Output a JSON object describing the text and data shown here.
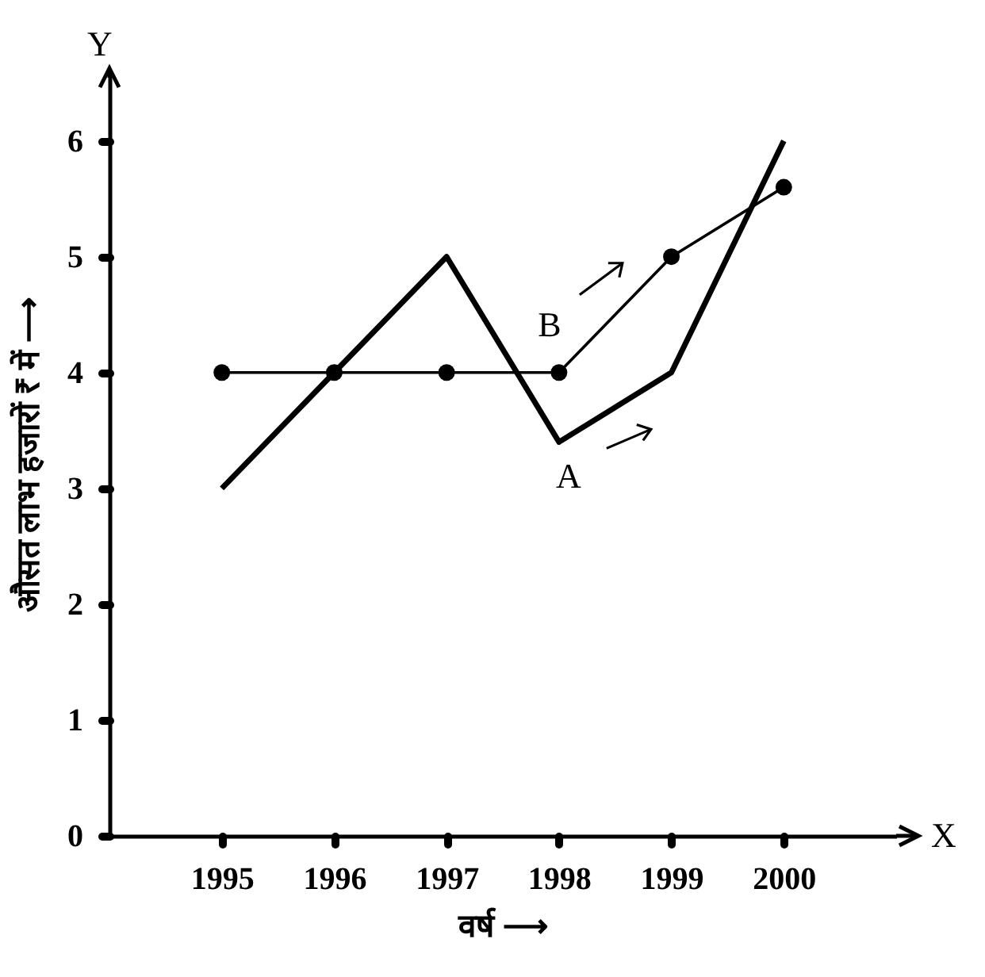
{
  "chart_data": {
    "type": "line",
    "categories": [
      "1995",
      "1996",
      "1997",
      "1998",
      "1999",
      "2000"
    ],
    "series": [
      {
        "name": "A",
        "color": "#000000",
        "values": [
          3,
          4,
          5,
          3.4,
          4,
          6
        ],
        "marker": "none"
      },
      {
        "name": "B",
        "color": "#000000",
        "values": [
          4,
          4,
          4,
          4,
          5,
          5.6
        ],
        "marker": "circle"
      }
    ],
    "xlabel": "वर्ष ⟶",
    "ylabel": "औसत लाभ हजारों ₹ में ⟶",
    "ylim": [
      0,
      6.6
    ],
    "yticks": [
      0,
      1,
      2,
      3,
      4,
      5,
      6
    ],
    "annotations": [
      "Y",
      "X"
    ],
    "grid": false
  }
}
